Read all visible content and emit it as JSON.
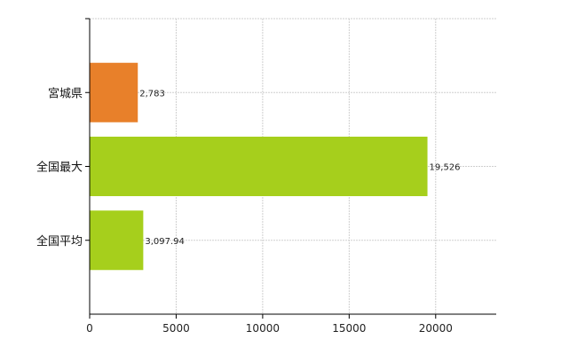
{
  "chart_data": {
    "type": "bar",
    "orientation": "horizontal",
    "categories": [
      "宮城県",
      "全国最大",
      "全国平均"
    ],
    "values": [
      2783,
      19526,
      3097.94
    ],
    "value_labels": [
      "2,783",
      "19,526",
      "3,097.94"
    ],
    "bar_colors": [
      "#E8802A",
      "#A6CF1C",
      "#A6CF1C"
    ],
    "xlim": [
      0,
      23500
    ],
    "xticks": [
      0,
      5000,
      10000,
      15000,
      20000
    ],
    "xtick_labels": [
      "0",
      "5000",
      "10000",
      "15000",
      "20000"
    ],
    "grid": true,
    "legend": "none"
  }
}
